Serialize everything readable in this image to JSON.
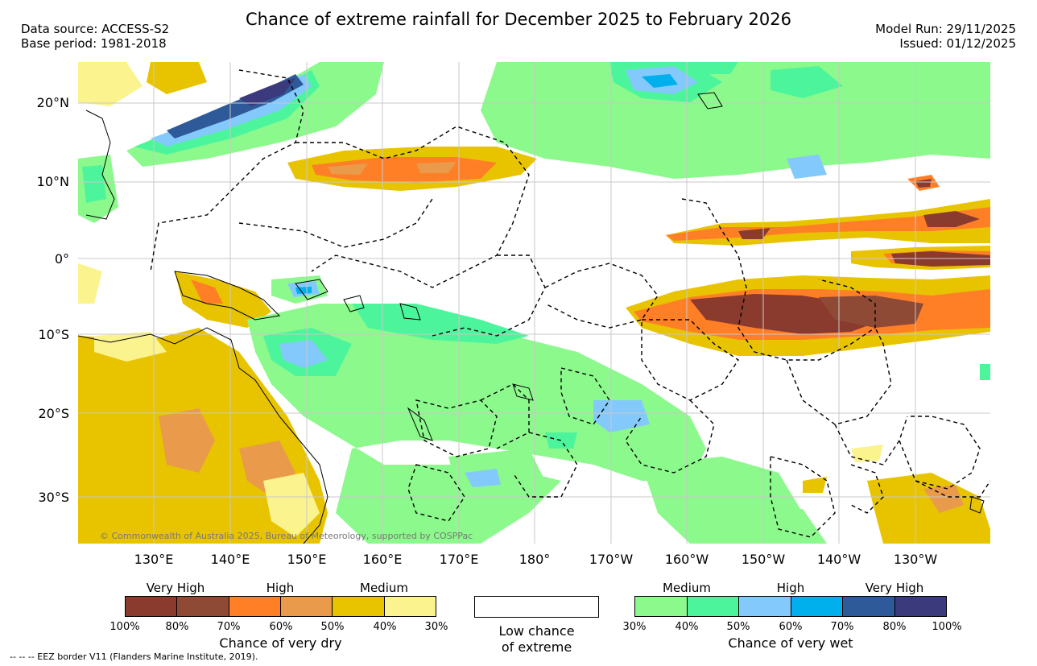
{
  "title": "Chance of extreme rainfall for December 2025 to February 2026",
  "meta": {
    "data_source": "Data source: ACCESS-S2",
    "base_period": "Base period: 1981-2018",
    "model_run": "Model Run: 29/11/2025",
    "issued": "Issued: 01/12/2025"
  },
  "map": {
    "lat_labels": [
      "20°N",
      "10°N",
      "0°",
      "10°S",
      "20°S",
      "30°S"
    ],
    "lon_labels": [
      "130°E",
      "140°E",
      "150°E",
      "160°E",
      "170°E",
      "180°",
      "170°W",
      "160°W",
      "150°W",
      "140°W",
      "130°W"
    ],
    "copyright": "© Commonwealth of Australia 2025, Bureau of Meteorology, supported by COSPPac"
  },
  "legend_dry": {
    "categories": [
      "Very High",
      "High",
      "Medium"
    ],
    "colors": [
      "#8b3a2e",
      "#8f4a36",
      "#ff7f27",
      "#e99a4a",
      "#e8c400",
      "#fbf38e"
    ],
    "ticks": [
      "100%",
      "80%",
      "70%",
      "60%",
      "50%",
      "40%",
      "30%"
    ],
    "title": "Chance of very dry"
  },
  "legend_low": {
    "line1": "Low chance",
    "line2": "of extreme"
  },
  "legend_wet": {
    "categories": [
      "Medium",
      "High",
      "Very High"
    ],
    "colors": [
      "#8cf98c",
      "#4cf59c",
      "#84c9fc",
      "#00b0ec",
      "#2f5a99",
      "#3a3a7c"
    ],
    "ticks": [
      "30%",
      "40%",
      "50%",
      "60%",
      "70%",
      "80%",
      "100%"
    ],
    "title": "Chance of very wet"
  },
  "footnote": "-- -- -- EEZ border V11 (Flanders Marine Institute, 2019)."
}
